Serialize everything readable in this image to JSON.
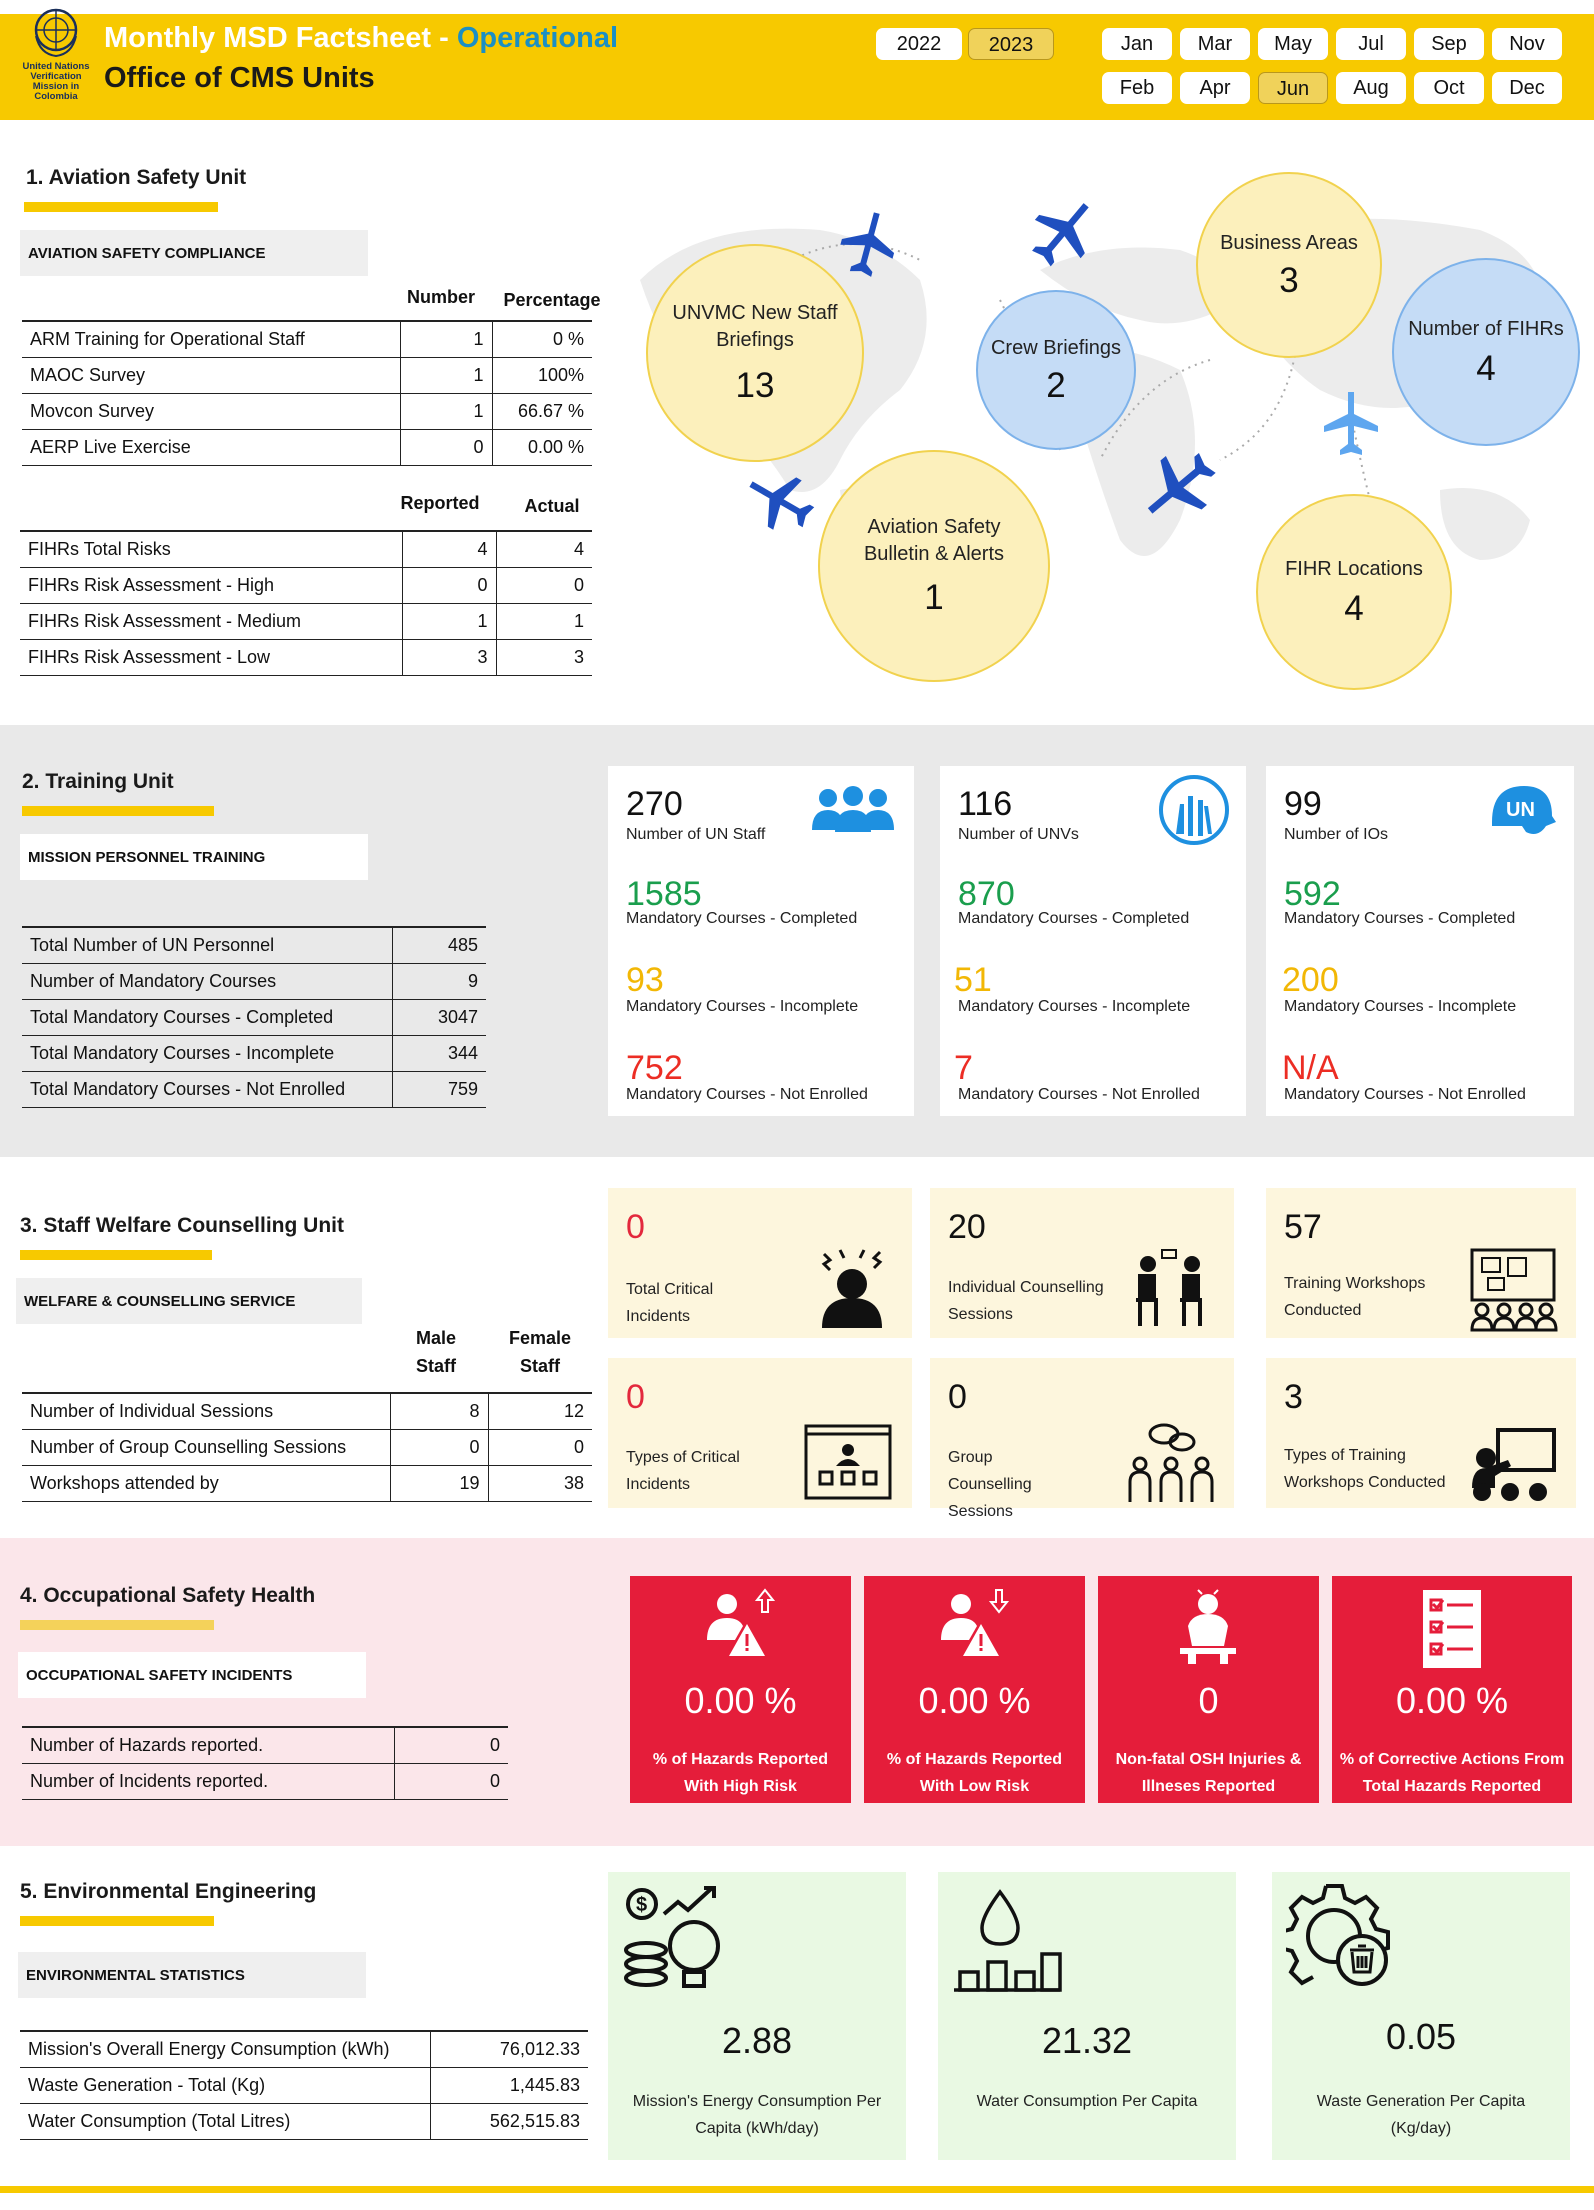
{
  "header": {
    "org_logo_text": "United Nations Verification Mission in Colombia",
    "title_main": "Monthly MSD Factsheet - ",
    "title_accent": "Operational",
    "subtitle": "Office of CMS Units",
    "years": [
      "2022",
      "2023"
    ],
    "selected_year": "2023",
    "months": [
      "Jan",
      "Mar",
      "May",
      "Jul",
      "Sep",
      "Nov",
      "Feb",
      "Apr",
      "Jun",
      "Aug",
      "Oct",
      "Dec"
    ],
    "selected_month": "Jun"
  },
  "aviation": {
    "title": "1. Aviation Safety Unit",
    "label": "AVIATION SAFETY COMPLIANCE",
    "compliance_headers": [
      "Number",
      "Percentage"
    ],
    "compliance_rows": [
      {
        "name": "ARM Training for Operational Staff",
        "number": "1",
        "pct": "0 %"
      },
      {
        "name": "MAOC Survey",
        "number": "1",
        "pct": "100%"
      },
      {
        "name": "Movcon Survey",
        "number": "1",
        "pct": "66.67 %"
      },
      {
        "name": "AERP Live Exercise",
        "number": "0",
        "pct": "0.00 %"
      }
    ],
    "risk_headers": [
      "Reported",
      "Actual"
    ],
    "risk_rows": [
      {
        "name": "FIHRs Total Risks",
        "reported": "4",
        "actual": "4"
      },
      {
        "name": "FIHRs Risk Assessment - High",
        "reported": "0",
        "actual": "0"
      },
      {
        "name": "FIHRs Risk Assessment - Medium",
        "reported": "1",
        "actual": "1"
      },
      {
        "name": "FIHRs Risk Assessment - Low",
        "reported": "3",
        "actual": "3"
      }
    ],
    "bubbles": [
      {
        "label": "UNVMC New Staff Briefings",
        "value": "13",
        "color": "yellow"
      },
      {
        "label": "Crew Briefings",
        "value": "2",
        "color": "blue"
      },
      {
        "label": "Business Areas",
        "value": "3",
        "color": "yellow"
      },
      {
        "label": "Number of FIHRs",
        "value": "4",
        "color": "blue"
      },
      {
        "label": "Aviation Safety Bulletin & Alerts",
        "value": "1",
        "color": "yellow"
      },
      {
        "label": "FIHR Locations",
        "value": "4",
        "color": "yellow"
      }
    ]
  },
  "training": {
    "title": "2. Training Unit",
    "label": "MISSION PERSONNEL TRAINING",
    "rows": [
      {
        "name": "Total Number of UN Personnel",
        "value": "485"
      },
      {
        "name": "Number of Mandatory Courses",
        "value": "9"
      },
      {
        "name": "Total Mandatory Courses - Completed",
        "value": "3047"
      },
      {
        "name": "Total Mandatory Courses - Incomplete",
        "value": "344"
      },
      {
        "name": "Total Mandatory Courses - Not Enrolled",
        "value": "759"
      }
    ],
    "cards": [
      {
        "count": "270",
        "count_label": "Number of UN Staff",
        "completed": "1585",
        "completed_label": "Mandatory Courses - Completed",
        "incomplete": "93",
        "incomplete_label": "Mandatory Courses - Incomplete",
        "not_enrolled": "752",
        "not_enrolled_label": "Mandatory Courses - Not Enrolled",
        "icon": "people-group-icon"
      },
      {
        "count": "116",
        "count_label": "Number of UNVs",
        "completed": "870",
        "completed_label": "Mandatory Courses - Completed",
        "incomplete": "51",
        "incomplete_label": "Mandatory Courses - Incomplete",
        "not_enrolled": "7",
        "not_enrolled_label": "Mandatory Courses - Not Enrolled",
        "icon": "unv-hands-icon"
      },
      {
        "count": "99",
        "count_label": "Number of IOs",
        "completed": "592",
        "completed_label": "Mandatory Courses - Completed",
        "incomplete": "200",
        "incomplete_label": "Mandatory Courses - Incomplete",
        "not_enrolled": "N/A",
        "not_enrolled_label": "Mandatory Courses - Not Enrolled",
        "icon": "un-helmet-icon"
      }
    ]
  },
  "welfare": {
    "title": "3. Staff Welfare Counselling Unit",
    "label": "WELFARE & COUNSELLING SERVICE",
    "headers": [
      "Male Staff",
      "Female Staff"
    ],
    "rows": [
      {
        "name": "Number of Individual Sessions",
        "male": "8",
        "female": "12"
      },
      {
        "name": "Number of Group Counselling Sessions",
        "male": "0",
        "female": "0"
      },
      {
        "name": "Workshops attended by",
        "male": "19",
        "female": "38"
      }
    ],
    "cards": [
      {
        "value": "0",
        "label": "Total Critical Incidents",
        "icon": "stressed-person-icon"
      },
      {
        "value": "20",
        "label": "Individual Counselling Sessions",
        "icon": "counselling-icon"
      },
      {
        "value": "57",
        "label": "Training Workshops Conducted",
        "icon": "workshop-board-icon"
      },
      {
        "value": "0",
        "label": "Types of Critical Incidents",
        "icon": "incident-board-icon"
      },
      {
        "value": "0",
        "label": "Group Counselling Sessions",
        "icon": "group-chat-icon"
      },
      {
        "value": "3",
        "label": "Types of Training Workshops Conducted",
        "icon": "presentation-icon"
      }
    ]
  },
  "osh": {
    "title": "4. Occupational Safety Health",
    "label": "OCCUPATIONAL SAFETY INCIDENTS",
    "rows": [
      {
        "name": "Number of Hazards reported.",
        "value": "0"
      },
      {
        "name": "Number of Incidents reported.",
        "value": "0"
      }
    ],
    "cards": [
      {
        "value": "0.00 %",
        "label": "% of Hazards Reported With High Risk",
        "icon": "hazard-up-icon"
      },
      {
        "value": "0.00 %",
        "label": "% of Hazards Reported With Low Risk",
        "icon": "hazard-down-icon"
      },
      {
        "value": "0",
        "label": "Non-fatal OSH Injuries & Illneses Reported",
        "icon": "injury-icon"
      },
      {
        "value": "0.00 %",
        "label": "% of Corrective Actions From Total Hazards Reported",
        "icon": "checklist-icon"
      }
    ]
  },
  "environment": {
    "title": "5. Environmental Engineering",
    "label": "ENVIRONMENTAL STATISTICS",
    "rows": [
      {
        "name": "Mission's Overall Energy Consumption (kWh)",
        "value": "76,012.33"
      },
      {
        "name": "Waste Generation - Total (Kg)",
        "value": "1,445.83"
      },
      {
        "name": "Water Consumption (Total Litres)",
        "value": "562,515.83"
      }
    ],
    "cards": [
      {
        "value": "2.88",
        "label": "Mission's Energy Consumption Per Capita (kWh/day)",
        "icon": "energy-cost-icon"
      },
      {
        "value": "21.32",
        "label": "Water Consumption Per Capita",
        "icon": "water-drop-chart-icon"
      },
      {
        "value": "0.05",
        "label": "Waste Generation Per Capita (Kg/day)",
        "icon": "waste-gear-icon"
      }
    ]
  },
  "colors": {
    "brand_yellow": "#f7c900",
    "accent_blue": "#1b8fc4",
    "green": "#1a9e4d",
    "amber": "#f2b705",
    "red": "#ec2d24",
    "osh_red": "#e51d3a"
  }
}
